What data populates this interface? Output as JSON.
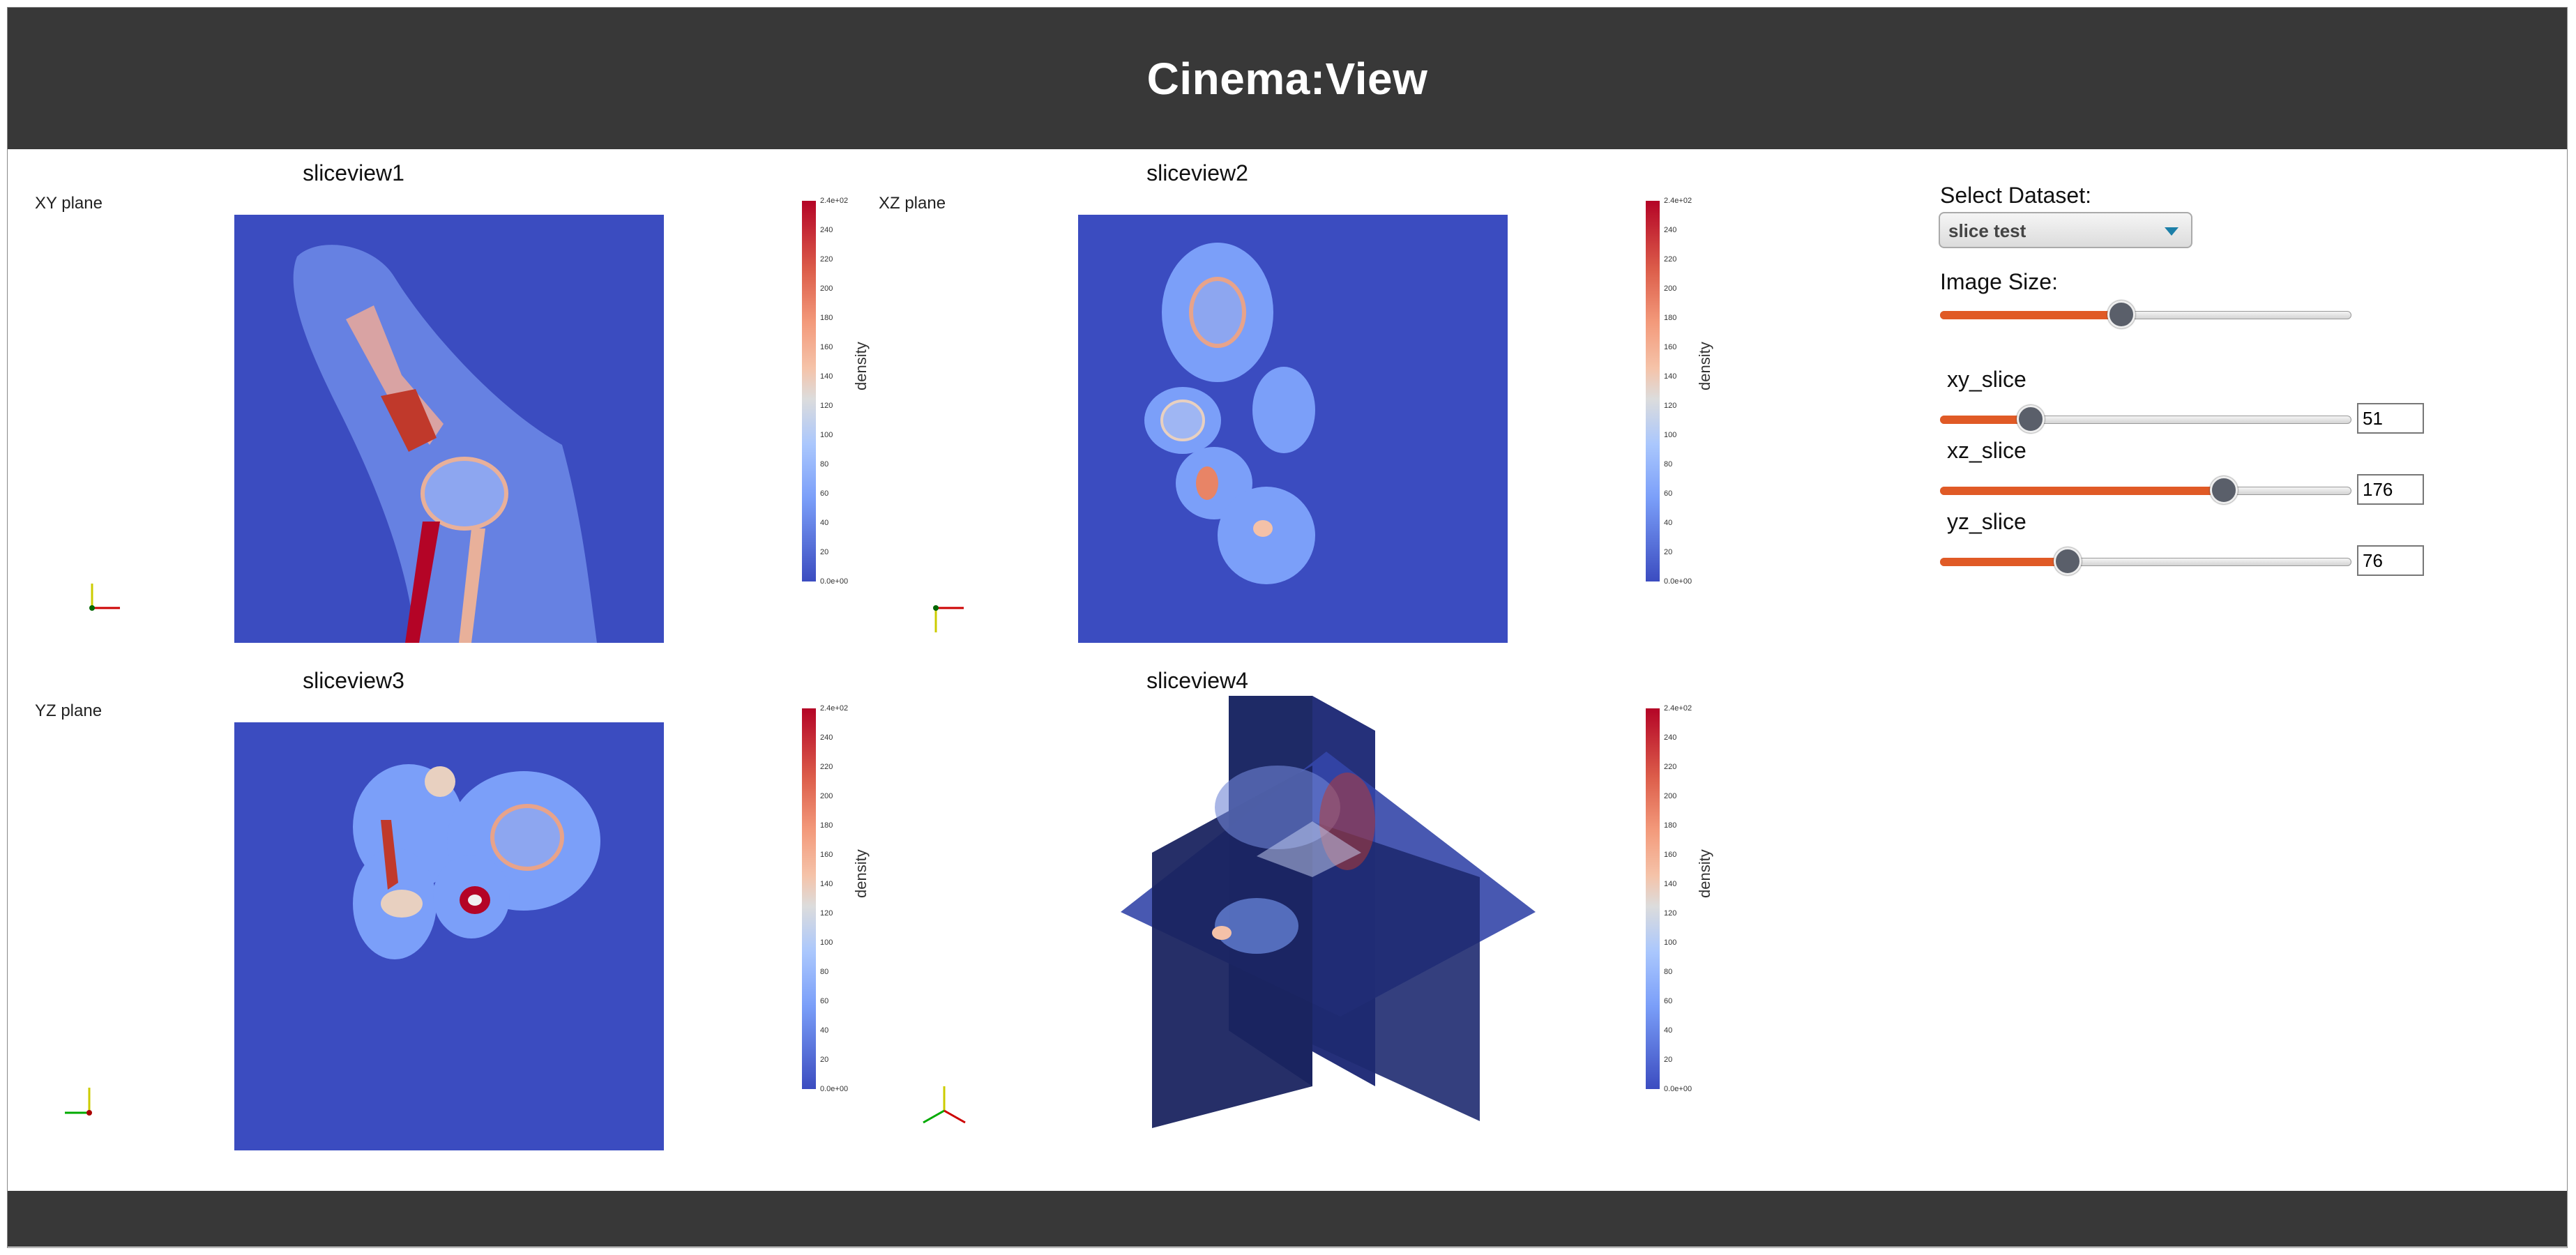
{
  "header": {
    "title": "Cinema:View"
  },
  "views": [
    {
      "title": "sliceview1",
      "plane": "XY plane",
      "colorbar_label": "density"
    },
    {
      "title": "sliceview2",
      "plane": "XZ plane",
      "colorbar_label": "density"
    },
    {
      "title": "sliceview3",
      "plane": "YZ plane",
      "colorbar_label": "density"
    },
    {
      "title": "sliceview4",
      "plane": "",
      "colorbar_label": "density"
    }
  ],
  "colorbar": {
    "top_label": "2.4e+02",
    "bottom_label": "0.0e+00",
    "ticks": [
      "240",
      "220",
      "200",
      "180",
      "160",
      "140",
      "120",
      "100",
      "80",
      "60",
      "40",
      "20"
    ],
    "colors": {
      "high": "#b40426",
      "mid": "#dcdcdc",
      "low": "#3b4cc0"
    }
  },
  "sidebar": {
    "dataset_label": "Select Dataset:",
    "dataset_value": "slice test",
    "image_size_label": "Image Size:",
    "image_size_fraction": 0.44,
    "sliders": [
      {
        "label": "xy_slice",
        "value": "51",
        "fraction": 0.22
      },
      {
        "label": "xz_slice",
        "value": "176",
        "fraction": 0.69
      },
      {
        "label": "yz_slice",
        "value": "76",
        "fraction": 0.31
      }
    ]
  },
  "colors": {
    "header_bg": "#383838",
    "accent": "#e05a26",
    "slice_bg": "#3b4cc0"
  }
}
